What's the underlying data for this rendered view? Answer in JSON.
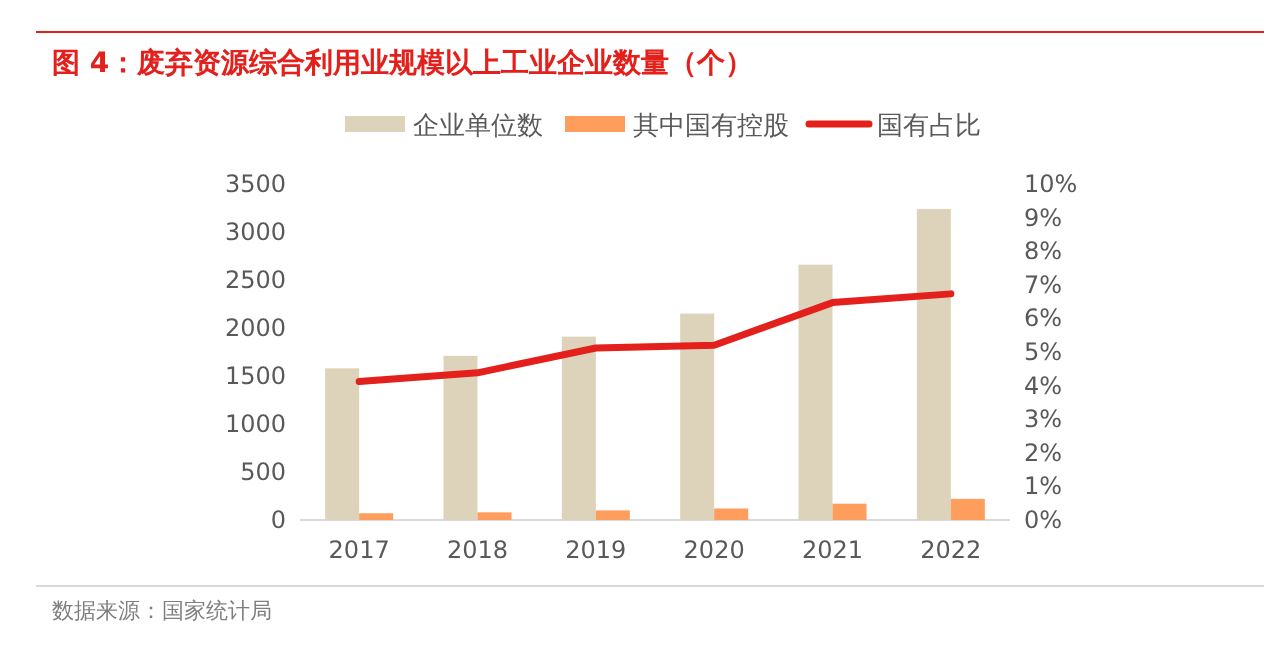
{
  "chart_data": {
    "type": "bar",
    "title": "图 4：废弃资源综合利用业规模以上工业企业数量（个）",
    "categories": [
      "2017",
      "2018",
      "2019",
      "2020",
      "2021",
      "2022"
    ],
    "series": [
      {
        "name": "企业单位数",
        "color": "#ddd3bb",
        "values": [
          1580,
          1710,
          1910,
          2150,
          2660,
          3240
        ]
      },
      {
        "name": "其中国有控股",
        "color": "#ff9d5c",
        "values": [
          70,
          80,
          100,
          120,
          170,
          220
        ]
      },
      {
        "name": "国有占比",
        "type": "line",
        "axis": "y2",
        "color": "#e3201b",
        "values": [
          4.12,
          4.38,
          5.12,
          5.2,
          6.47,
          6.73
        ]
      }
    ],
    "ylim": [
      0,
      3500
    ],
    "yticks": [
      0,
      500,
      1000,
      1500,
      2000,
      2500,
      3000,
      3500
    ],
    "y2lim": [
      0,
      10
    ],
    "y2ticks": [
      {
        "value": 0,
        "label": "0%"
      },
      {
        "value": 1,
        "label": "1%"
      },
      {
        "value": 2,
        "label": "2%"
      },
      {
        "value": 3,
        "label": "3%"
      },
      {
        "value": 4,
        "label": "4%"
      },
      {
        "value": 5,
        "label": "5%"
      },
      {
        "value": 6,
        "label": "6%"
      },
      {
        "value": 7,
        "label": "7%"
      },
      {
        "value": 8,
        "label": "8%"
      },
      {
        "value": 9,
        "label": "9%"
      },
      {
        "value": 10,
        "label": "10%"
      }
    ],
    "legend": "top",
    "annotations": [
      "数据来源：国家统计局"
    ]
  }
}
